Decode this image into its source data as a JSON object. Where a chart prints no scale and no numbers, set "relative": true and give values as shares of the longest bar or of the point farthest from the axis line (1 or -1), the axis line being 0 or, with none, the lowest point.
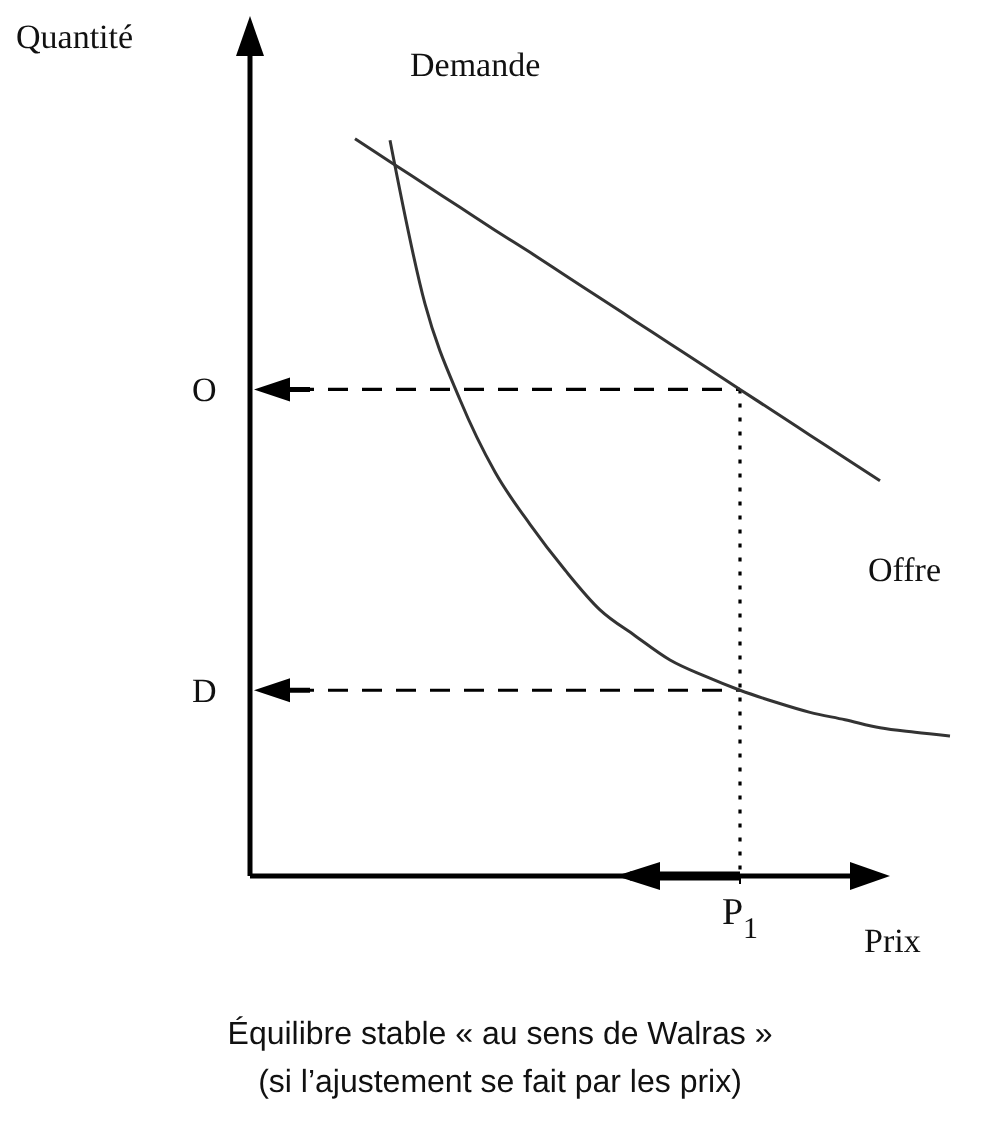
{
  "chart_data": {
    "type": "line",
    "relative": true,
    "xlabel": "Prix",
    "ylabel": "Quantité",
    "categories": [
      null,
      null,
      null,
      null,
      null,
      null,
      null,
      null,
      null,
      null,
      null,
      null,
      null,
      null,
      null,
      null,
      null,
      null,
      null,
      null,
      null
    ],
    "series": [
      {
        "name": "Demande",
        "color": "#333333",
        "values": [
          null,
          null,
          null,
          null,
          0.998,
          0.776,
          0.646,
          0.548,
          0.477,
          0.415,
          0.361,
          0.326,
          0.293,
          0.271,
          0.252,
          0.236,
          0.222,
          0.212,
          0.201,
          0.195,
          0.19
        ]
      },
      {
        "name": "Offre",
        "color": "#333333",
        "values": [
          null,
          null,
          null,
          1.0,
          0.969,
          0.938,
          0.907,
          0.876,
          0.846,
          0.815,
          0.784,
          0.753,
          0.722,
          0.691,
          0.66,
          0.629,
          0.598,
          0.567,
          0.536,
          null,
          null
        ]
      }
    ],
    "ref_lines": [
      {
        "axis": "y",
        "value": 0.66,
        "label": "O",
        "line_style": "dashed",
        "color": "#000000"
      },
      {
        "axis": "y",
        "value": 0.252,
        "label": "D",
        "line_style": "dashed",
        "color": "#000000"
      }
    ],
    "legend": false,
    "marker": "none",
    "line_style": "solid",
    "annotations": [
      "P$_{1}$",
      "Équilibre stable « au sens de Walras »",
      "(si l’ajustement se fait par les prix)"
    ]
  }
}
